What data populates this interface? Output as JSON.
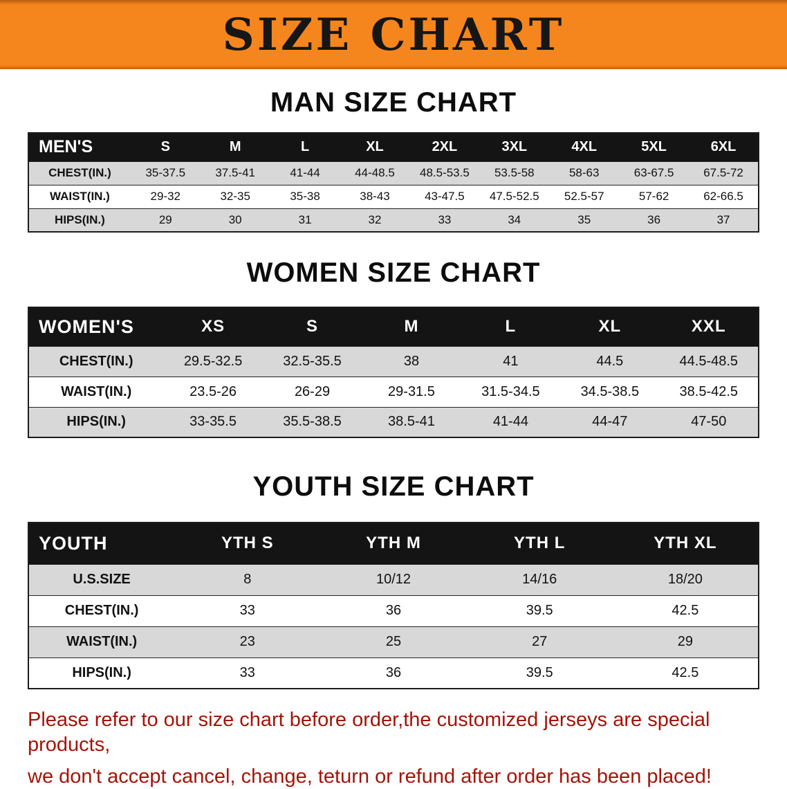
{
  "banner": {
    "title": "SIZE CHART"
  },
  "colors": {
    "banner_orange": "#F5861D",
    "header_black": "#141414",
    "row_gray": "#D8D8D8",
    "footer_red": "#A41408"
  },
  "sections": [
    {
      "id": "men",
      "heading": "MAN SIZE CHART",
      "table": {
        "header": [
          "MEN'S",
          "S",
          "M",
          "L",
          "XL",
          "2XL",
          "3XL",
          "4XL",
          "5XL",
          "6XL"
        ],
        "rows": [
          [
            "CHEST(IN.)",
            "35-37.5",
            "37.5-41",
            "41-44",
            "44-48.5",
            "48.5-53.5",
            "53.5-58",
            "58-63",
            "63-67.5",
            "67.5-72"
          ],
          [
            "WAIST(IN.)",
            "29-32",
            "32-35",
            "35-38",
            "38-43",
            "43-47.5",
            "47.5-52.5",
            "52.5-57",
            "57-62",
            "62-66.5"
          ],
          [
            "HIPS(IN.)",
            "29",
            "30",
            "31",
            "32",
            "33",
            "34",
            "35",
            "36",
            "37"
          ]
        ]
      }
    },
    {
      "id": "women",
      "heading": "WOMEN SIZE CHART",
      "table": {
        "header": [
          "WOMEN'S",
          "XS",
          "S",
          "M",
          "L",
          "XL",
          "XXL"
        ],
        "rows": [
          [
            "CHEST(IN.)",
            "29.5-32.5",
            "32.5-35.5",
            "38",
            "41",
            "44.5",
            "44.5-48.5"
          ],
          [
            "WAIST(IN.)",
            "23.5-26",
            "26-29",
            "29-31.5",
            "31.5-34.5",
            "34.5-38.5",
            "38.5-42.5"
          ],
          [
            "HIPS(IN.)",
            "33-35.5",
            "35.5-38.5",
            "38.5-41",
            "41-44",
            "44-47",
            "47-50"
          ]
        ]
      }
    },
    {
      "id": "youth",
      "heading": "YOUTH SIZE CHART",
      "table": {
        "header": [
          "YOUTH",
          "YTH S",
          "YTH M",
          "YTH L",
          "YTH XL"
        ],
        "rows": [
          [
            "U.S.SIZE",
            "8",
            "10/12",
            "14/16",
            "18/20"
          ],
          [
            "CHEST(IN.)",
            "33",
            "36",
            "39.5",
            "42.5"
          ],
          [
            "WAIST(IN.)",
            "23",
            "25",
            "27",
            "29"
          ],
          [
            "HIPS(IN.)",
            "33",
            "36",
            "39.5",
            "42.5"
          ]
        ]
      }
    }
  ],
  "footer": {
    "line1": "Please refer to our size chart before order,the customized jerseys are special products,",
    "line2": "we don't accept cancel, change, teturn or refund after order has been placed!"
  }
}
